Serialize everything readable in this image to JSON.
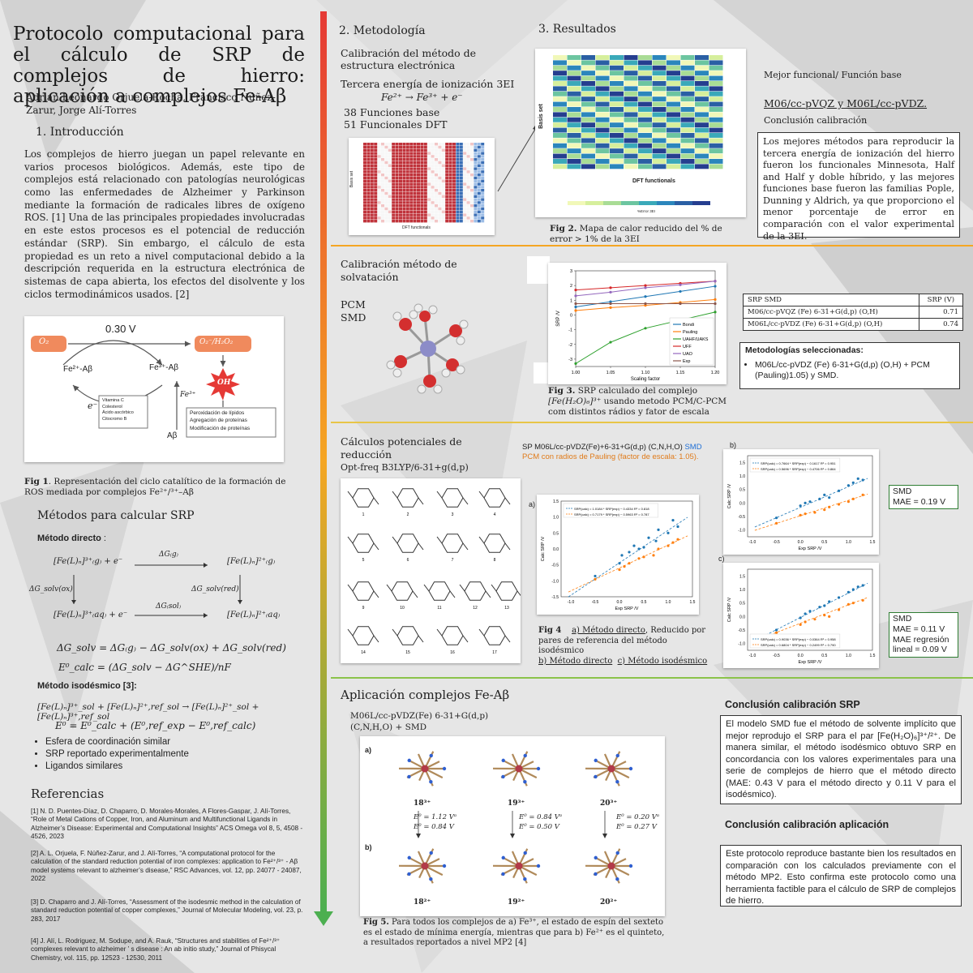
{
  "title": "Protocolo computacional para el cálculo de SRP de complejos de hierro: aplicación a complejos Fe-Aβ",
  "authors": "Adrian Leonardo Orjuela-Rocha, Francisco Núñez-Zarur, Jorge Alí-Torres",
  "intro": {
    "heading": "1. Introducción",
    "text": "Los complejos de hierro juegan un papel relevante en varios procesos biológicos. Además, este tipo de complejos está relacionado con patologías neurológicas como las enfermedades de Alzheimer y Parkinson mediante la formación de radicales libres de oxígeno ROS. [1] Una de las principales propiedades involucradas en este estos procesos es el potencial de reducción estándar (SRP). Sin embargo, el cálculo de esta propiedad es un reto a nivel computacional debido a la descripción requerida en la estructura electrónica de sistemas de capa abierta, los efectos del disolvente y los ciclos termodinámicos usados. [2]"
  },
  "fig1": {
    "voltage": "0.30 V",
    "o2": "O₂",
    "product": "O₂⁻/H₂O₂",
    "fe2": "Fe²⁺-Aβ",
    "fe3": "Fe³⁺-Aβ",
    "electron": "e⁻",
    "fe3_ion": "Fe³⁺",
    "ab": "Aβ",
    "oh": "OH",
    "reductants": [
      "Vitamina C",
      "Colesterol",
      "Ácido ascórbico",
      "Citocromo B"
    ],
    "effects": [
      "Peroxidación de lípidos",
      "Agregación de proteínas",
      "Modificación de proteínas"
    ],
    "caption_label": "Fig 1",
    "caption": ". Representación del ciclo catalítico de la formación de ROS mediada por complejos Fe²⁺/³⁺–Aβ"
  },
  "methods": {
    "heading": "Métodos para calcular SRP",
    "direct_label": "Método directo",
    "direct_colon": " :",
    "cycle": {
      "tl": "[Fe(L)ₙ]³⁺₍g₎ + e⁻",
      "tr": "[Fe(L)ₙ]²⁺₍g₎",
      "bl": "[Fe(L)ₙ]³⁺₍aq₎ + e⁻",
      "br": "[Fe(L)ₙ]²⁺₍aq₎",
      "dg_g": "ΔG₍g₎",
      "dg_sol": "ΔG₍sol₎",
      "dg_ox": "ΔG_solv(ox)",
      "dg_red": "ΔG_solv(red)"
    },
    "eq1": "ΔG_solv = ΔG₍g₎ − ΔG_solv(ox) + ΔG_solv(red)",
    "eq2": "E⁰_calc = (ΔG_solv − ΔG^SHE)/nF",
    "isodesmic_label": "Método isodésmico [3]:",
    "eq3": "[Fe(L)ₙ]³⁺_sol + [Fe(L)ₙ]²⁺,ref_sol → [Fe(L)ₙ]²⁺_sol + [Fe(L)ₙ]³⁺,ref_sol",
    "eq4": "E⁰ = E⁰_calc + (E⁰,ref_exp − E⁰,ref_calc)",
    "bullets": [
      "Esfera de coordinación similar",
      "SRP reportado experimentalmente",
      "Ligandos similares"
    ]
  },
  "references": {
    "heading": "Referencias",
    "items": [
      "[1] N. D. Puentes-Díaz, D. Chaparro, D. Morales-Morales, A Flores-Gaspar, J. Alí-Torres, “Role of Metal Cations of Copper, Iron, and Aluminum and Multifunctional Ligands in Alzheimer’s Disease: Experimental and Computational Insights” ACS Omega vol 8, 5, 4508 - 4526, 2023",
      "[2] A. L. Orjuela, F. Núñez-Zarur, and J. Alí-Torres, “A computational protocol for the calculation of the standard reduction potential of iron complexes: application to Fe²⁺/³⁺ - Aβ model systems relevant to alzheimer’s disease,” RSC Advances, vol. 12, pp. 24077 - 24087, 2022",
      "[3] D. Chaparro and J. Alí-Torres, “Assessment of the isodesmic method in the calculation of standard reduction potential of copper complexes,” Journal of Molecular Modeling, vol. 23, p. 283, 2017",
      "[4] J. Alí, L. Rodriguez, M. Sodupe, and A. Rauk, “Structures and stabilities of Fe²⁺/³⁺ complexes relevant to alzheimer ’ s disease : An ab initio study,” Journal of Phisycal Chemistry, vol. 115, pp. 12523 - 12530, 2011"
    ]
  },
  "metodologia": {
    "heading": "2. Metodología",
    "sub1": "Calibración del método de estructura electrónica",
    "tei": "Tercera energía de ionización 3EI",
    "reaction": "Fe²⁺ → Fe³⁺ + e⁻",
    "basis": "38 Funciones base",
    "functionals": "51 Funcionales DFT",
    "small_heatmap_xlabel": "DFT functionals",
    "small_heatmap_ylabel": "Basis set"
  },
  "resultados": {
    "heading": "3. Resultados",
    "heatmap_xlabel": "DFT functionals",
    "heatmap_ylabel": "Basis set",
    "heatmap_colorbar_label": "%Error 3EI",
    "fig2_label": "Fig 2.",
    "fig2_caption": " Mapa de calor reducido del % de error > 1% de la 3EI",
    "best_heading": "Mejor funcional/ Función base",
    "best_value": "M06/cc-pVQZ y M06L/cc-pVDZ.",
    "calib_conclusion_heading": "Conclusión calibración",
    "calib_conclusion": "Los mejores métodos para reproducir la tercera energía de ionización del hierro fueron los funcionales Minnesota, Half and Half y doble híbrido, y las mejores funciones base fueron las familias Pople, Dunning y Aldrich, ya que proporciono el menor porcentaje de error en comparación con el valor experimental de la 3EI."
  },
  "solvation": {
    "heading": "Calibración método de solvatación",
    "pcm": "PCM",
    "smd": "SMD",
    "fig3_label": "Fig 3.",
    "fig3_caption_a": " SRP calculado del complejo ",
    "fig3_complex": "[Fe(H₂O)₆]³⁺",
    "fig3_caption_b": " usando metodo PCM/C-PCM com distintos rádios y fator de escala",
    "table_header": [
      "SRP SMD",
      "SRP (V)"
    ],
    "table_rows": [
      [
        "M06/cc-pVQZ (Fe) 6-31+G(d,p) (O,H)",
        "0.71"
      ],
      [
        "M06L/cc-pVDZ (Fe) 6-31+G(d,p) (O,H)",
        "0.74"
      ]
    ],
    "selected_heading": "Metodologías seleccionadas:",
    "selected_item": "M06L/cc-pVDZ (Fe) 6-31+G(d,p) (O,H) + PCM (Pauling)1.05) y SMD."
  },
  "potentials": {
    "heading": "Cálculos potenciales de reducción",
    "optfreq": "Opt-freq B3LYP/6-31+g(d,p)",
    "sp_line_a": "SP M06L/cc-pVDZ(Fe)+6-31+G(d,p) (C,N,H,O) ",
    "sp_smd": "SMD",
    "sp_line_b": "PCM con radios de Pauling (factor de escala: 1.05).",
    "mol_numbers": [
      "1",
      "2",
      "3",
      "4",
      "5",
      "6",
      "7",
      "8",
      "9",
      "10",
      "11",
      "12",
      "13",
      "14",
      "15",
      "16",
      "17"
    ],
    "panel_a": "a)",
    "panel_b": "b)",
    "panel_c": "c)",
    "fig4_label": "Fig 4",
    "fig4_a": "a) Método directo",
    "fig4_mid": ", Reducido por pares de referencia del método isodésmico",
    "fig4_b": "b) Método directo",
    "fig4_c": "c) Método isodésmico",
    "box1": [
      "SMD",
      "MAE = 0.19 V"
    ],
    "box2": [
      "SMD",
      "MAE = 0.11 V",
      "MAE regresión",
      "lineal = 0.09 V"
    ]
  },
  "aplicacion": {
    "heading": "Aplicación complejos Fe-Aβ",
    "method": "M06L/cc-pVDZ(Fe) 6-31+G(d,p) (C,N,H,O) + SMD",
    "row_a": "a)",
    "row_b": "b)",
    "top_labels": [
      "18³⁺",
      "19³⁺",
      "20³⁺"
    ],
    "bottom_labels": [
      "18²⁺",
      "19²⁺",
      "20²⁺"
    ],
    "energies": [
      [
        "E⁰ = 1.12 Vᵃ",
        "E⁰ = 0.84 V"
      ],
      [
        "E⁰ = 0.84 Vᵃ",
        "E⁰ = 0.50 V"
      ],
      [
        "E⁰ = 0.20 Vᵃ",
        "E⁰ = 0.27 V"
      ]
    ],
    "fig5_label": "Fig 5.",
    "fig5_caption": " Para todos los complejos de a) Fe³⁺, el estado de espín del sexteto es el estado de mínima energía, mientras que para b) Fe²⁺ es el quinteto, a resultados reportados a nivel MP2 [4]"
  },
  "conclusion_srp": {
    "heading": "Conclusión calibración SRP",
    "text": "El modelo SMD fue el método de solvente implícito que mejor reprodujo el SRP para el par [Fe(H₂O)₆]³⁺/²⁺. De manera similar, el método isodésmico obtuvo SRP en concordancia con los valores experimentales para una serie de complejos de hierro que el método directo (MAE: 0.43 V para el método directo y 0.11 V para el isodésmico)."
  },
  "conclusion_app": {
    "heading": "Conclusión calibración aplicación",
    "text": "Este protocolo reproduce bastante bien los resultados en comparación con los calculados previamente con el método MP2. Esto confirma este protocolo como una herramienta factible para el cálculo de SRP de complejos de hierro."
  },
  "chart_data": [
    {
      "type": "line",
      "id": "fig3",
      "xlabel": "Scaling factor",
      "ylabel": "SRP /V",
      "x": [
        1.0,
        1.05,
        1.1,
        1.15,
        1.2
      ],
      "xticks": [
        "1.00",
        "1.05",
        "1.10",
        "1.15",
        "1.20"
      ],
      "ylim": [
        -3.5,
        3.0
      ],
      "yticks": [
        -3,
        -2,
        -1,
        0,
        1,
        2,
        3
      ],
      "legend_position": "lower-right",
      "series": [
        {
          "name": "Bondi",
          "color": "#1f77b4",
          "values": [
            0.55,
            0.9,
            1.25,
            1.6,
            1.95
          ]
        },
        {
          "name": "Pauling",
          "color": "#ff7f0e",
          "values": [
            0.3,
            0.5,
            0.65,
            0.85,
            1.05
          ]
        },
        {
          "name": "UAHF/UAKS",
          "color": "#2ca02c",
          "values": [
            -3.3,
            -1.85,
            -0.9,
            -0.35,
            0.2
          ]
        },
        {
          "name": "UFF",
          "color": "#d62728",
          "values": [
            1.7,
            1.85,
            2.0,
            2.15,
            2.3
          ]
        },
        {
          "name": "UAO",
          "color": "#9467bd",
          "values": [
            1.3,
            1.55,
            1.85,
            2.05,
            2.3
          ]
        },
        {
          "name": "Exp",
          "color": "#8c564b",
          "values": [
            0.77,
            0.77,
            0.77,
            0.77,
            0.77
          ]
        }
      ]
    },
    {
      "type": "scatter",
      "id": "fig4a",
      "xlabel": "Exp SRP /V",
      "ylabel": "Calc SRP /V",
      "xlim": [
        -1.2,
        1.5
      ],
      "ylim": [
        -1.5,
        1.5
      ],
      "xticks": [
        -1.0,
        -0.5,
        0.0,
        0.5,
        1.0,
        1.5
      ],
      "yticks": [
        -1.5,
        -1.0,
        -0.5,
        0.0,
        0.5,
        1.0,
        1.5
      ],
      "legend_position": "top-left",
      "series": [
        {
          "name": "SRP(calc) = 1.0184 * SRP(exp) − 0.4334  R² = 0.818",
          "color": "#1f77b4",
          "slope": 1.0184,
          "intercept": -0.4334,
          "points": [
            [
              -0.5,
              -0.85
            ],
            [
              0.0,
              -0.45
            ],
            [
              0.05,
              -0.2
            ],
            [
              0.2,
              -0.1
            ],
            [
              0.3,
              0.1
            ],
            [
              0.4,
              0.0
            ],
            [
              0.5,
              0.05
            ],
            [
              0.6,
              0.35
            ],
            [
              0.75,
              0.25
            ],
            [
              0.8,
              0.6
            ],
            [
              1.0,
              0.5
            ],
            [
              1.1,
              0.9
            ],
            [
              1.2,
              0.7
            ]
          ]
        },
        {
          "name": "SRP(calc) = 0.7179 * SRP(exp) − 0.5963  R² = 0.787",
          "color": "#ff7f0e",
          "slope": 0.7179,
          "intercept": -0.5963,
          "points": [
            [
              -0.5,
              -0.95
            ],
            [
              0.0,
              -0.65
            ],
            [
              0.1,
              -0.55
            ],
            [
              0.2,
              -0.45
            ],
            [
              0.4,
              -0.3
            ],
            [
              0.5,
              -0.25
            ],
            [
              0.7,
              -0.2
            ],
            [
              0.8,
              0.0
            ],
            [
              1.0,
              0.1
            ],
            [
              1.1,
              0.2
            ],
            [
              1.2,
              0.3
            ]
          ]
        }
      ]
    },
    {
      "type": "scatter",
      "id": "fig4b",
      "xlabel": "Exp SRP /V",
      "ylabel": "Calc SRP /V",
      "xlim": [
        -1.1,
        1.5
      ],
      "ylim": [
        -1.25,
        1.75
      ],
      "xticks": [
        -1.0,
        -0.5,
        0.0,
        0.5,
        1.0,
        1.5
      ],
      "yticks": [
        -1.0,
        -0.5,
        0.0,
        0.5,
        1.0,
        1.5
      ],
      "legend_position": "top-left",
      "series": [
        {
          "name": "SRP(calc) = 0.7664 * SRP(exp) − 0.1617  R² = 0.951",
          "color": "#1f77b4",
          "slope": 0.7664,
          "intercept": -0.1617,
          "points": [
            [
              -0.5,
              -0.55
            ],
            [
              0.0,
              -0.1
            ],
            [
              0.1,
              0.0
            ],
            [
              0.2,
              0.05
            ],
            [
              0.4,
              0.15
            ],
            [
              0.5,
              0.3
            ],
            [
              0.6,
              0.2
            ],
            [
              0.8,
              0.45
            ],
            [
              1.0,
              0.65
            ],
            [
              1.1,
              0.75
            ],
            [
              1.2,
              0.9
            ],
            [
              1.3,
              0.85
            ]
          ]
        },
        {
          "name": "SRP(calc) = 0.5696 * SRP(exp) − 0.4706  R² = 0.864",
          "color": "#ff7f0e",
          "slope": 0.5696,
          "intercept": -0.4706,
          "points": [
            [
              -0.5,
              -0.75
            ],
            [
              0.0,
              -0.45
            ],
            [
              0.1,
              -0.4
            ],
            [
              0.3,
              -0.35
            ],
            [
              0.5,
              -0.25
            ],
            [
              0.6,
              -0.15
            ],
            [
              0.8,
              -0.05
            ],
            [
              1.0,
              0.05
            ],
            [
              1.1,
              0.15
            ],
            [
              1.3,
              0.3
            ]
          ]
        }
      ]
    },
    {
      "type": "scatter",
      "id": "fig4c",
      "xlabel": "Exp SRP /V",
      "ylabel": "Calc SRP /V",
      "xlim": [
        -1.1,
        1.5
      ],
      "ylim": [
        -1.25,
        1.75
      ],
      "xticks": [
        -1.0,
        -0.5,
        0.0,
        0.5,
        1.0,
        1.5
      ],
      "yticks": [
        -1.0,
        -0.5,
        0.0,
        0.5,
        1.0,
        1.5
      ],
      "legend_position": "bottom-left",
      "series": [
        {
          "name": "SRP(calc) = 0.9036 * SRP(exp) − 0.0364  R² = 0.958",
          "color": "#1f77b4",
          "slope": 0.9036,
          "intercept": -0.0364,
          "points": [
            [
              -0.5,
              -0.5
            ],
            [
              0.0,
              -0.05
            ],
            [
              0.1,
              0.1
            ],
            [
              0.2,
              0.2
            ],
            [
              0.4,
              0.35
            ],
            [
              0.5,
              0.4
            ],
            [
              0.6,
              0.55
            ],
            [
              0.8,
              0.7
            ],
            [
              1.0,
              0.9
            ],
            [
              1.1,
              1.0
            ],
            [
              1.2,
              1.1
            ],
            [
              1.3,
              1.15
            ]
          ]
        },
        {
          "name": "SRP(calc) = 0.6804 * SRP(exp) − 0.2499  R² = 0.790",
          "color": "#ff7f0e",
          "slope": 0.6804,
          "intercept": -0.2499,
          "points": [
            [
              -0.5,
              -0.6
            ],
            [
              0.0,
              -0.3
            ],
            [
              0.1,
              -0.2
            ],
            [
              0.3,
              -0.1
            ],
            [
              0.5,
              0.05
            ],
            [
              0.6,
              0.0
            ],
            [
              0.8,
              0.25
            ],
            [
              1.0,
              0.45
            ],
            [
              1.1,
              0.5
            ],
            [
              1.3,
              0.6
            ]
          ]
        }
      ]
    }
  ]
}
